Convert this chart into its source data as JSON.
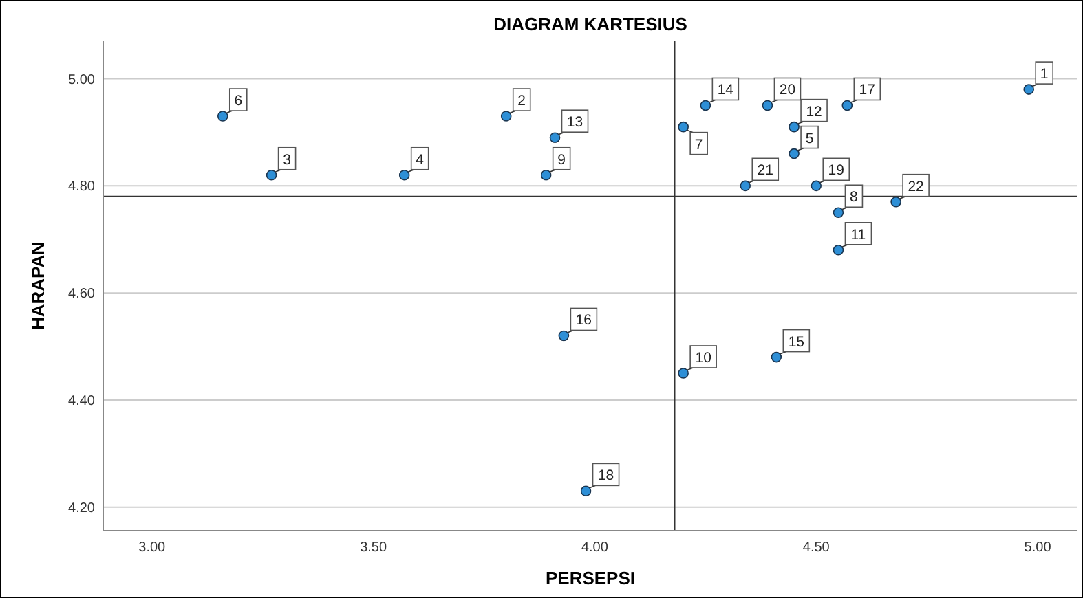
{
  "chart_data": {
    "type": "scatter",
    "title": "DIAGRAM KARTESIUS",
    "xlabel": "PERSEPSI",
    "ylabel": "HARAPAN",
    "x": [
      4.98,
      3.8,
      3.27,
      3.57,
      4.45,
      3.16,
      4.2,
      4.55,
      3.89,
      4.2,
      4.55,
      4.45,
      3.91,
      4.25,
      4.41,
      3.93,
      4.57,
      3.98,
      4.5,
      4.39,
      4.34,
      4.68
    ],
    "series": [
      {
        "color": "#2e8fd6",
        "values": [
          4.98,
          4.93,
          4.82,
          4.82,
          4.86,
          4.93,
          4.91,
          4.75,
          4.82,
          4.45,
          4.68,
          4.91,
          4.89,
          4.95,
          4.48,
          4.52,
          4.95,
          4.23,
          4.8,
          4.95,
          4.8,
          4.77
        ]
      }
    ],
    "xlim": [
      2.89,
      5.09
    ],
    "ylim": [
      4.156,
      5.07
    ],
    "xticks": [
      {
        "value": 3,
        "label": "3.00"
      },
      {
        "value": 3.5,
        "label": "3.50"
      },
      {
        "value": 4,
        "label": "4.00"
      },
      {
        "value": 4.5,
        "label": "4.50"
      },
      {
        "value": 5,
        "label": "5.00"
      }
    ],
    "yticks": [
      {
        "value": 4.2,
        "label": "4.20"
      },
      {
        "value": 4.4,
        "label": "4.40"
      },
      {
        "value": 4.6,
        "label": "4.60"
      },
      {
        "value": 4.8,
        "label": "4.80"
      },
      {
        "value": 5,
        "label": "5.00"
      }
    ],
    "grid": "y",
    "marker": "circle",
    "ref_lines": [
      {
        "axis": "x",
        "value": 4.18,
        "color": "#333333"
      },
      {
        "axis": "y",
        "value": 4.78,
        "color": "#333333"
      }
    ],
    "annotations": [
      {
        "text": "1",
        "x": 4.98,
        "y": 4.98
      },
      {
        "text": "2",
        "x": 3.8,
        "y": 4.93
      },
      {
        "text": "3",
        "x": 3.27,
        "y": 4.82
      },
      {
        "text": "4",
        "x": 3.57,
        "y": 4.82
      },
      {
        "text": "5",
        "x": 4.45,
        "y": 4.86
      },
      {
        "text": "6",
        "x": 3.16,
        "y": 4.93
      },
      {
        "text": "7",
        "x": 4.2,
        "y": 4.91
      },
      {
        "text": "8",
        "x": 4.55,
        "y": 4.75
      },
      {
        "text": "9",
        "x": 3.89,
        "y": 4.82
      },
      {
        "text": "10",
        "x": 4.2,
        "y": 4.45
      },
      {
        "text": "11",
        "x": 4.55,
        "y": 4.68
      },
      {
        "text": "12",
        "x": 4.45,
        "y": 4.91
      },
      {
        "text": "13",
        "x": 3.91,
        "y": 4.89
      },
      {
        "text": "14",
        "x": 4.25,
        "y": 4.95
      },
      {
        "text": "15",
        "x": 4.41,
        "y": 4.48
      },
      {
        "text": "16",
        "x": 3.93,
        "y": 4.52
      },
      {
        "text": "17",
        "x": 4.57,
        "y": 4.95
      },
      {
        "text": "18",
        "x": 3.98,
        "y": 4.23
      },
      {
        "text": "19",
        "x": 4.5,
        "y": 4.8
      },
      {
        "text": "20",
        "x": 4.39,
        "y": 4.95
      },
      {
        "text": "21",
        "x": 4.34,
        "y": 4.8
      },
      {
        "text": "22",
        "x": 4.68,
        "y": 4.77
      }
    ]
  }
}
